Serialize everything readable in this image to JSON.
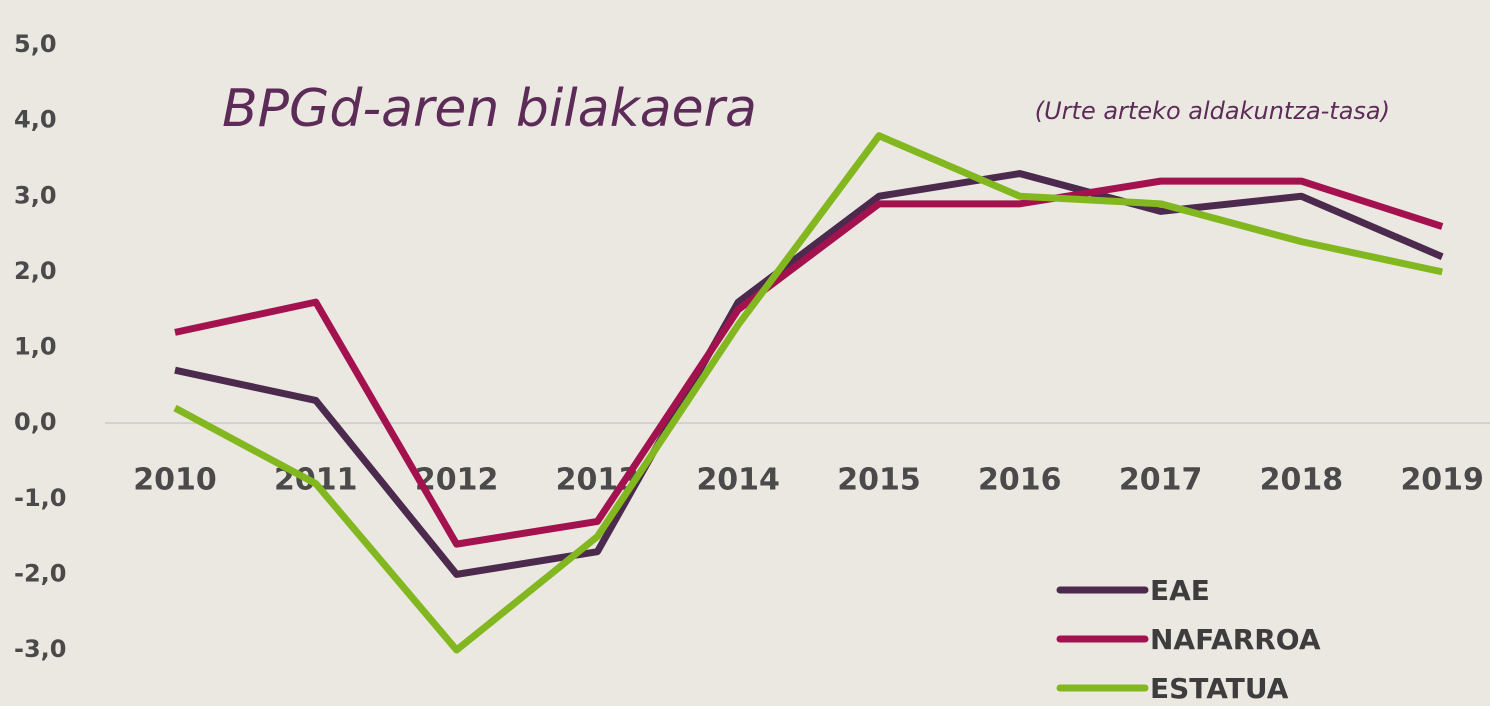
{
  "chart_data": {
    "type": "line",
    "title": "BPGd-aren bilakaera",
    "subtitle": "(Urte arteko aldakuntza-tasa)",
    "categories": [
      "2010",
      "2011",
      "2012",
      "2013",
      "2014",
      "2015",
      "2016",
      "2017",
      "2018",
      "2019"
    ],
    "series": [
      {
        "name": "EAE",
        "color": "#4b2a4d",
        "values": [
          0.7,
          0.3,
          -2.0,
          -1.7,
          1.6,
          3.0,
          3.3,
          2.8,
          3.0,
          2.2
        ]
      },
      {
        "name": "NAFARROA",
        "color": "#a3124f",
        "values": [
          1.2,
          1.6,
          -1.6,
          -1.3,
          1.5,
          2.9,
          2.9,
          3.2,
          3.2,
          2.6
        ]
      },
      {
        "name": "ESTATUA",
        "color": "#82b71f",
        "values": [
          0.2,
          -0.8,
          -3.0,
          -1.5,
          1.3,
          3.8,
          3.0,
          2.9,
          2.4,
          2.0
        ]
      }
    ],
    "ylim": [
      -3.0,
      5.0
    ],
    "yticks": [
      {
        "value": 5,
        "label": "5,0"
      },
      {
        "value": 4,
        "label": "4,0"
      },
      {
        "value": 3,
        "label": "3,0"
      },
      {
        "value": 2,
        "label": "2,0"
      },
      {
        "value": 1,
        "label": "1,0"
      },
      {
        "value": 0,
        "label": "0,0"
      },
      {
        "value": -1,
        "label": "-1,0"
      },
      {
        "value": -2,
        "label": "-2,0"
      },
      {
        "value": -3,
        "label": "-3,0"
      }
    ],
    "legend": "bottom-right"
  }
}
